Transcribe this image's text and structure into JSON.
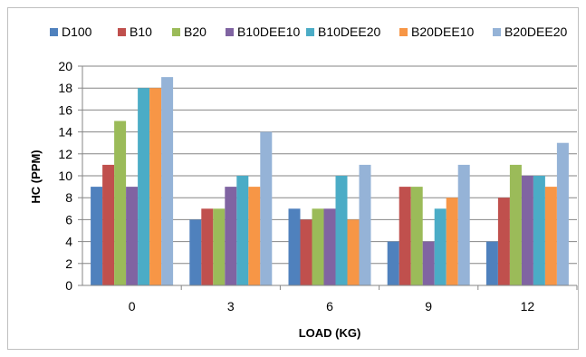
{
  "chart_data": {
    "type": "bar",
    "title": "",
    "xlabel": "LOAD (KG)",
    "ylabel": "HC (PPM)",
    "categories": [
      "0",
      "3",
      "6",
      "9",
      "12"
    ],
    "ylim": [
      0,
      20
    ],
    "yticks": [
      "0",
      "2",
      "4",
      "6",
      "8",
      "10",
      "12",
      "14",
      "16",
      "18",
      "20"
    ],
    "grid": true,
    "legend_position": "top",
    "series": [
      {
        "name": "D100",
        "color": "#4F81BD",
        "values": [
          9,
          6,
          7,
          4,
          4
        ]
      },
      {
        "name": "B10",
        "color": "#C0504D",
        "values": [
          11,
          7,
          6,
          9,
          8
        ]
      },
      {
        "name": "B20",
        "color": "#9BBB59",
        "values": [
          15,
          7,
          7,
          9,
          11
        ]
      },
      {
        "name": "B10DEE10",
        "color": "#8064A2",
        "values": [
          9,
          9,
          7,
          4,
          10
        ]
      },
      {
        "name": "B10DEE20",
        "color": "#4BACC6",
        "values": [
          18,
          10,
          10,
          7,
          10
        ]
      },
      {
        "name": "B20DEE10",
        "color": "#F79646",
        "values": [
          18,
          9,
          6,
          8,
          9
        ]
      },
      {
        "name": "B20DEE20",
        "color": "#95B3D7",
        "values": [
          19,
          14,
          11,
          11,
          13
        ]
      }
    ]
  }
}
